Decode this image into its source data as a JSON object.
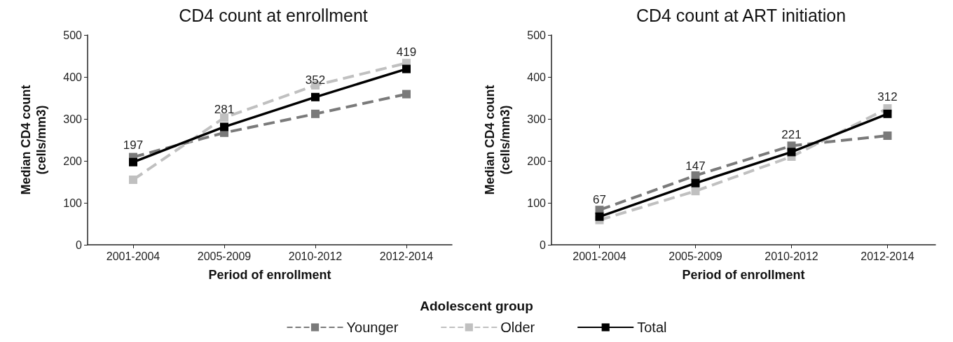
{
  "chart_data": [
    {
      "type": "line",
      "title": "CD4 count at enrollment",
      "xlabel": "Period of enrollment",
      "ylabel": "Median CD4 count\n(cells/mm3)",
      "categories": [
        "2001-2004",
        "2005-2009",
        "2010-2012",
        "2012-2014"
      ],
      "ylim": [
        0,
        500
      ],
      "yticks": [
        0,
        100,
        200,
        300,
        400,
        500
      ],
      "grid": false,
      "marker": "square",
      "legend": "bottom",
      "legend_title": "Adolescent group",
      "series": [
        {
          "name": "Younger",
          "color": "#7a7a7a",
          "line_style": "dashed",
          "values": [
            209,
            267,
            312,
            359
          ]
        },
        {
          "name": "Older",
          "color": "#c0c0c0",
          "line_style": "dashed",
          "values": [
            155,
            303,
            380,
            433
          ]
        },
        {
          "name": "Total",
          "color": "#000000",
          "line_style": "solid",
          "values": [
            197,
            281,
            352,
            419
          ],
          "value_labels": [
            "197",
            "281",
            "352",
            "419"
          ]
        }
      ]
    },
    {
      "type": "line",
      "title": "CD4 count at ART initiation",
      "xlabel": "Period of enrollment",
      "ylabel": "Median CD4 count\n(cells/mm3)",
      "categories": [
        "2001-2004",
        "2005-2009",
        "2010-2012",
        "2012-2014"
      ],
      "ylim": [
        0,
        500
      ],
      "yticks": [
        0,
        100,
        200,
        300,
        400,
        500
      ],
      "grid": false,
      "marker": "square",
      "series": [
        {
          "color": "#7a7a7a",
          "line_style": "dashed",
          "values": [
            83,
            165,
            236,
            260
          ]
        },
        {
          "color": "#c0c0c0",
          "line_style": "dashed",
          "values": [
            59,
            128,
            210,
            325
          ]
        },
        {
          "color": "#000000",
          "line_style": "solid",
          "values": [
            67,
            147,
            221,
            312
          ],
          "value_labels": [
            "67",
            "147",
            "221",
            "312"
          ]
        }
      ]
    }
  ]
}
